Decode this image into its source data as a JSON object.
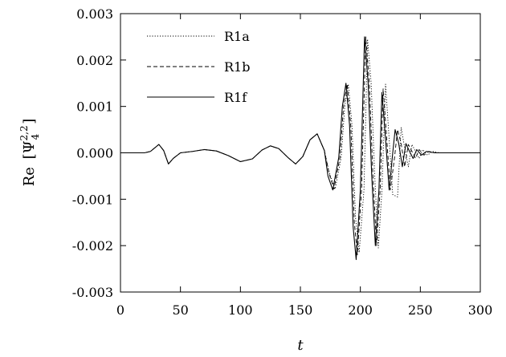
{
  "chart_data": {
    "type": "line",
    "xlabel": "t",
    "ylabel_prefix": "Re",
    "ylabel_symbol": "Ψ",
    "ylabel_sub": "4",
    "ylabel_sup": "2,2",
    "xlim": [
      0,
      300
    ],
    "ylim": [
      -0.003,
      0.003
    ],
    "x_ticks": [
      0,
      50,
      100,
      150,
      200,
      250,
      300
    ],
    "x_tick_labels": [
      "0",
      "50",
      "100",
      "150",
      "200",
      "250",
      "300"
    ],
    "y_ticks": [
      -0.003,
      -0.002,
      -0.001,
      0.0,
      0.001,
      0.002,
      0.003
    ],
    "y_tick_labels": [
      "-0.003",
      "-0.002",
      "-0.001",
      "0.000",
      "0.001",
      "0.002",
      "0.003"
    ],
    "grid": false,
    "legend_position": "top-left",
    "series": [
      {
        "name": "R1a",
        "style": "dotted",
        "points": [
          [
            0,
            0.0
          ],
          [
            20,
            0.0
          ],
          [
            25,
            3e-05
          ],
          [
            32,
            0.00018
          ],
          [
            36,
            5e-05
          ],
          [
            40,
            -0.00024
          ],
          [
            44,
            -0.00012
          ],
          [
            50,
            0.0
          ],
          [
            60,
            3e-05
          ],
          [
            70,
            7e-05
          ],
          [
            80,
            4e-05
          ],
          [
            90,
            -6e-05
          ],
          [
            100,
            -0.00019
          ],
          [
            110,
            -0.00013
          ],
          [
            118,
            6e-05
          ],
          [
            125,
            0.00015
          ],
          [
            132,
            9e-05
          ],
          [
            140,
            -0.00011
          ],
          [
            146,
            -0.00024
          ],
          [
            152,
            -8e-05
          ],
          [
            158,
            0.00028
          ],
          [
            164,
            0.00041
          ],
          [
            170,
            5e-05
          ],
          [
            174,
            -0.00042
          ],
          [
            179,
            -0.00078
          ],
          [
            184,
            -0.0001
          ],
          [
            187,
            0.001
          ],
          [
            190,
            0.00148
          ],
          [
            193,
            0.0006
          ],
          [
            196,
            -0.0014
          ],
          [
            199,
            -0.00215
          ],
          [
            203,
            -0.0008
          ],
          [
            206,
            0.00245
          ],
          [
            209,
            0.0015
          ],
          [
            212,
            -0.0005
          ],
          [
            215,
            -0.00205
          ],
          [
            218,
            -0.0008
          ],
          [
            221,
            0.00148
          ],
          [
            224,
            0.0003
          ],
          [
            227,
            -0.0009
          ],
          [
            231,
            -0.00095
          ],
          [
            234,
            0.00055
          ],
          [
            237,
            0.0001
          ],
          [
            240,
            -0.0003
          ],
          [
            243,
            0.00018
          ],
          [
            246,
            3e-05
          ],
          [
            249,
            -0.00012
          ],
          [
            252,
            7e-05
          ],
          [
            256,
            -5e-05
          ],
          [
            260,
            3e-05
          ],
          [
            266,
            0.0
          ],
          [
            300,
            0.0
          ]
        ]
      },
      {
        "name": "R1b",
        "style": "dashed",
        "points": [
          [
            0,
            0.0
          ],
          [
            20,
            0.0
          ],
          [
            25,
            3e-05
          ],
          [
            32,
            0.00018
          ],
          [
            36,
            5e-05
          ],
          [
            40,
            -0.00024
          ],
          [
            44,
            -0.00012
          ],
          [
            50,
            0.0
          ],
          [
            60,
            3e-05
          ],
          [
            70,
            7e-05
          ],
          [
            80,
            4e-05
          ],
          [
            90,
            -6e-05
          ],
          [
            100,
            -0.00019
          ],
          [
            110,
            -0.00013
          ],
          [
            118,
            6e-05
          ],
          [
            125,
            0.00015
          ],
          [
            132,
            9e-05
          ],
          [
            140,
            -0.00011
          ],
          [
            146,
            -0.00024
          ],
          [
            152,
            -8e-05
          ],
          [
            158,
            0.00028
          ],
          [
            164,
            0.00041
          ],
          [
            170,
            5e-05
          ],
          [
            174,
            -0.00045
          ],
          [
            178,
            -0.00078
          ],
          [
            183,
            -0.0001
          ],
          [
            186,
            0.001
          ],
          [
            189,
            0.00148
          ],
          [
            192,
            0.0006
          ],
          [
            195,
            -0.0015
          ],
          [
            197.5,
            -0.0022
          ],
          [
            201,
            -0.0008
          ],
          [
            204.5,
            0.0025
          ],
          [
            207.5,
            0.0015
          ],
          [
            210.5,
            -0.0005
          ],
          [
            213.5,
            -0.002
          ],
          [
            216.5,
            -0.0008
          ],
          [
            219,
            0.00138
          ],
          [
            222,
            0.0003
          ],
          [
            225,
            -0.0008
          ],
          [
            228.5,
            -0.0001
          ],
          [
            231,
            0.0005
          ],
          [
            234,
            0.0002
          ],
          [
            237,
            -0.0003
          ],
          [
            240,
            0.00018
          ],
          [
            243,
            3e-05
          ],
          [
            246,
            -0.00012
          ],
          [
            249,
            7e-05
          ],
          [
            253,
            -5e-05
          ],
          [
            257,
            3e-05
          ],
          [
            263,
            0.0
          ],
          [
            300,
            0.0
          ]
        ]
      },
      {
        "name": "R1f",
        "style": "solid",
        "points": [
          [
            0,
            0.0
          ],
          [
            20,
            0.0
          ],
          [
            25,
            3e-05
          ],
          [
            32,
            0.00018
          ],
          [
            36,
            5e-05
          ],
          [
            40,
            -0.00024
          ],
          [
            44,
            -0.00012
          ],
          [
            50,
            0.0
          ],
          [
            60,
            3e-05
          ],
          [
            70,
            7e-05
          ],
          [
            80,
            4e-05
          ],
          [
            90,
            -6e-05
          ],
          [
            100,
            -0.00019
          ],
          [
            110,
            -0.00013
          ],
          [
            118,
            6e-05
          ],
          [
            125,
            0.00015
          ],
          [
            132,
            9e-05
          ],
          [
            140,
            -0.00011
          ],
          [
            146,
            -0.00024
          ],
          [
            152,
            -8e-05
          ],
          [
            158,
            0.00028
          ],
          [
            164,
            0.00041
          ],
          [
            170,
            5e-05
          ],
          [
            173,
            -0.0005
          ],
          [
            177,
            -0.0008
          ],
          [
            182,
            -0.0001
          ],
          [
            185,
            0.001
          ],
          [
            188,
            0.0015
          ],
          [
            191,
            0.0006
          ],
          [
            194,
            -0.0016
          ],
          [
            196.5,
            -0.0023
          ],
          [
            200,
            -0.0008
          ],
          [
            203.5,
            0.0025
          ],
          [
            206.5,
            0.0015
          ],
          [
            209.5,
            -0.0005
          ],
          [
            212.5,
            -0.002
          ],
          [
            215.5,
            -0.0008
          ],
          [
            218,
            0.0013
          ],
          [
            221,
            0.0003
          ],
          [
            224,
            -0.0008
          ],
          [
            227,
            0.0
          ],
          [
            229,
            0.0005
          ],
          [
            232,
            0.0002
          ],
          [
            235,
            -0.0003
          ],
          [
            238,
            0.0002
          ],
          [
            241,
            3e-05
          ],
          [
            244,
            -0.00012
          ],
          [
            247,
            7e-05
          ],
          [
            251,
            -5e-05
          ],
          [
            255,
            3e-05
          ],
          [
            262,
            0.0
          ],
          [
            300,
            0.0
          ]
        ]
      }
    ]
  }
}
